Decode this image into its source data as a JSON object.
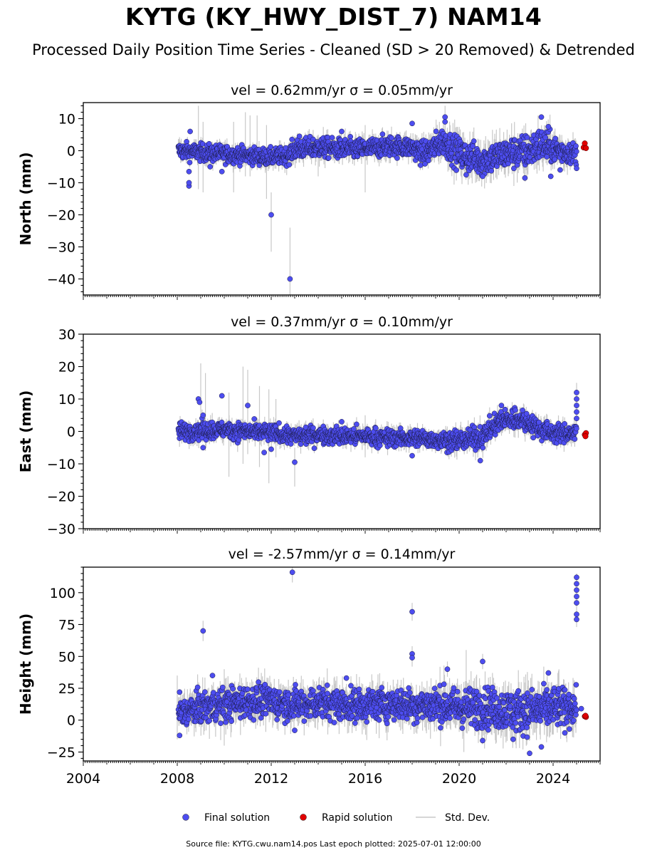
{
  "title": "KYTG (KY_HWY_DIST_7) NAM14",
  "subtitle": "Processed Daily Position Time Series - Cleaned (SD > 20 Removed) & Detrended",
  "footer": "Source file: KYTG.cwu.nam14.pos  Last epoch plotted: 2025-07-01 12:00:00",
  "colors": {
    "final": "#4d4df0",
    "rapid": "#e00000",
    "stddev": "#c8c8c8",
    "axis": "#000000"
  },
  "legend": [
    {
      "label": "Final solution",
      "type": "marker",
      "color": "#4d4df0"
    },
    {
      "label": "Rapid solution",
      "type": "marker",
      "color": "#e00000"
    },
    {
      "label": "Std. Dev.",
      "type": "line",
      "color": "#c8c8c8"
    }
  ],
  "chart_data": [
    {
      "type": "scatter",
      "component": "North",
      "title": "vel = 0.62mm/yr   σ = 0.05mm/yr",
      "ylabel": "North (mm)",
      "xlim": [
        2004.0,
        2026.0
      ],
      "ylim": [
        -45,
        15
      ],
      "yticks": [
        -40,
        -30,
        -20,
        -10,
        0,
        10
      ],
      "xticks": [
        2004,
        2008,
        2012,
        2016,
        2020,
        2024
      ],
      "data_start": 2008.05,
      "data_end": 2025.0,
      "band": [
        [
          2008.05,
          0.0,
          2.5
        ],
        [
          2009.0,
          -0.5,
          2.5
        ],
        [
          2010.0,
          -1.0,
          2.5
        ],
        [
          2011.0,
          -1.5,
          2.5
        ],
        [
          2012.0,
          -2.0,
          2.5
        ],
        [
          2012.7,
          -1.5,
          2.5
        ],
        [
          2013.0,
          0.5,
          3.0
        ],
        [
          2014.0,
          1.0,
          3.0
        ],
        [
          2015.0,
          0.5,
          3.0
        ],
        [
          2016.0,
          0.5,
          3.0
        ],
        [
          2017.0,
          1.5,
          3.0
        ],
        [
          2018.0,
          1.0,
          3.0
        ],
        [
          2018.5,
          -1.0,
          3.5
        ],
        [
          2019.3,
          3.0,
          4.0
        ],
        [
          2020.0,
          -1.0,
          4.5
        ],
        [
          2021.0,
          -3.0,
          4.5
        ],
        [
          2022.0,
          -1.0,
          4.5
        ],
        [
          2023.0,
          0.0,
          5.0
        ],
        [
          2023.5,
          2.0,
          5.0
        ],
        [
          2024.0,
          0.5,
          4.0
        ],
        [
          2025.0,
          -1.0,
          3.0
        ]
      ],
      "outliers": [
        [
          2008.5,
          -11.0
        ],
        [
          2008.5,
          -10.0
        ],
        [
          2008.5,
          -6.5
        ],
        [
          2008.55,
          6.0
        ],
        [
          2009.4,
          -5.0
        ],
        [
          2009.9,
          -6.5
        ],
        [
          2012.0,
          -20.0
        ],
        [
          2012.8,
          -40.0
        ],
        [
          2013.2,
          4.5
        ],
        [
          2015.0,
          6.0
        ],
        [
          2018.0,
          8.5
        ],
        [
          2019.4,
          10.5
        ],
        [
          2019.4,
          9.0
        ],
        [
          2021.0,
          -8.0
        ],
        [
          2022.8,
          -8.5
        ],
        [
          2023.5,
          10.5
        ],
        [
          2023.8,
          7.5
        ],
        [
          2023.9,
          -8.0
        ],
        [
          2025.0,
          -5.5
        ],
        [
          2024.3,
          -6.0
        ],
        [
          2020.3,
          -7.5
        ]
      ],
      "errorbars": [
        [
          2008.9,
          14.0,
          -12.0
        ],
        [
          2009.1,
          9.0,
          -13.0
        ],
        [
          2010.4,
          9.0,
          -13.0
        ],
        [
          2010.9,
          12.0,
          -8.0
        ],
        [
          2011.1,
          11.0,
          -8.0
        ],
        [
          2011.4,
          11.0,
          -6.0
        ],
        [
          2011.8,
          8.0,
          -15.0
        ],
        [
          2012.0,
          -13.0,
          -31.5
        ],
        [
          2012.8,
          -24.0,
          -45.0
        ],
        [
          2014.0,
          5.0,
          -8.0
        ],
        [
          2016.0,
          8.0,
          -13.0
        ],
        [
          2019.4,
          14.0,
          -3.0
        ]
      ],
      "rapid": [
        [
          2025.3,
          1.0
        ],
        [
          2025.35,
          2.3
        ],
        [
          2025.4,
          0.8
        ]
      ]
    },
    {
      "type": "scatter",
      "component": "East",
      "title": "vel = 0.37mm/yr   σ = 0.10mm/yr",
      "ylabel": "East (mm)",
      "xlim": [
        2004.0,
        2026.0
      ],
      "ylim": [
        -30,
        30
      ],
      "yticks": [
        -30,
        -20,
        -10,
        0,
        10,
        20,
        30
      ],
      "xticks": [
        2004,
        2008,
        2012,
        2016,
        2020,
        2024
      ],
      "data_start": 2008.05,
      "data_end": 2025.0,
      "band": [
        [
          2008.05,
          0.0,
          2.5
        ],
        [
          2010.0,
          0.5,
          2.5
        ],
        [
          2011.0,
          0.0,
          2.5
        ],
        [
          2012.0,
          -0.5,
          2.5
        ],
        [
          2013.0,
          -1.5,
          2.5
        ],
        [
          2014.0,
          -1.0,
          2.5
        ],
        [
          2015.0,
          -1.5,
          2.5
        ],
        [
          2016.0,
          -1.5,
          2.5
        ],
        [
          2017.0,
          -2.0,
          2.5
        ],
        [
          2018.0,
          -2.0,
          2.5
        ],
        [
          2019.0,
          -2.5,
          2.5
        ],
        [
          2020.0,
          -3.0,
          3.0
        ],
        [
          2021.0,
          -1.5,
          3.0
        ],
        [
          2021.8,
          3.5,
          3.0
        ],
        [
          2022.5,
          4.0,
          3.0
        ],
        [
          2023.0,
          2.5,
          3.0
        ],
        [
          2023.5,
          0.5,
          3.0
        ],
        [
          2024.0,
          -0.5,
          2.5
        ],
        [
          2025.0,
          -0.5,
          2.5
        ]
      ],
      "outliers": [
        [
          2008.9,
          10.0
        ],
        [
          2008.95,
          9.0
        ],
        [
          2009.1,
          5.0
        ],
        [
          2009.1,
          -5.0
        ],
        [
          2009.9,
          11.0
        ],
        [
          2011.0,
          8.0
        ],
        [
          2012.0,
          -5.5
        ],
        [
          2013.0,
          -9.5
        ],
        [
          2011.7,
          -6.5
        ],
        [
          2015.0,
          3.0
        ],
        [
          2020.9,
          -9.0
        ],
        [
          2018.0,
          -7.5
        ],
        [
          2025.0,
          12.0
        ],
        [
          2025.0,
          10.0
        ],
        [
          2025.0,
          8.0
        ],
        [
          2025.0,
          6.0
        ],
        [
          2025.0,
          4.0
        ],
        [
          2021.8,
          8.0
        ],
        [
          2022.7,
          6.5
        ]
      ],
      "errorbars": [
        [
          2009.0,
          21.0,
          -3.0
        ],
        [
          2009.2,
          18.0,
          -6.0
        ],
        [
          2010.2,
          12.0,
          -14.0
        ],
        [
          2010.8,
          20.0,
          -10.0
        ],
        [
          2011.0,
          19.0,
          -7.0
        ],
        [
          2011.5,
          14.0,
          -11.0
        ],
        [
          2011.9,
          13.0,
          -16.0
        ],
        [
          2013.0,
          -5.0,
          -17.0
        ],
        [
          2012.2,
          10.0,
          -8.0
        ],
        [
          2016.0,
          5.0,
          -8.0
        ],
        [
          2025.0,
          15.0,
          3.0
        ]
      ],
      "rapid": [
        [
          2025.35,
          -1.0
        ],
        [
          2025.4,
          -0.5
        ],
        [
          2025.38,
          -1.5
        ]
      ]
    },
    {
      "type": "scatter",
      "component": "Height",
      "title": "vel = -2.57mm/yr   σ = 0.14mm/yr",
      "ylabel": "Height (mm)",
      "xlim": [
        2004.0,
        2026.0
      ],
      "ylim": [
        -32,
        120
      ],
      "yticks": [
        -25,
        0,
        25,
        50,
        75,
        100
      ],
      "xticks": [
        2004,
        2008,
        2012,
        2016,
        2020,
        2024
      ],
      "xticklabels": [
        "2004",
        "2008",
        "2012",
        "2016",
        "2020",
        "2024"
      ],
      "data_start": 2008.05,
      "data_end": 2025.0,
      "band": [
        [
          2008.05,
          5.0,
          10.0
        ],
        [
          2009.0,
          10.0,
          12.0
        ],
        [
          2010.0,
          12.0,
          12.0
        ],
        [
          2011.0,
          15.0,
          12.0
        ],
        [
          2012.0,
          15.0,
          12.0
        ],
        [
          2013.0,
          12.0,
          12.0
        ],
        [
          2014.0,
          14.0,
          12.0
        ],
        [
          2015.0,
          12.0,
          12.0
        ],
        [
          2016.0,
          12.0,
          12.0
        ],
        [
          2017.0,
          13.0,
          12.0
        ],
        [
          2018.0,
          12.0,
          12.0
        ],
        [
          2019.0,
          12.0,
          13.0
        ],
        [
          2020.0,
          10.0,
          14.0
        ],
        [
          2021.0,
          10.0,
          15.0
        ],
        [
          2022.0,
          8.0,
          15.0
        ],
        [
          2023.0,
          7.0,
          16.0
        ],
        [
          2024.0,
          10.0,
          15.0
        ],
        [
          2025.0,
          10.0,
          12.0
        ]
      ],
      "outliers": [
        [
          2009.1,
          70.0
        ],
        [
          2009.5,
          35.0
        ],
        [
          2012.9,
          116.0
        ],
        [
          2013.0,
          -8.0
        ],
        [
          2018.0,
          85.0
        ],
        [
          2018.0,
          52.0
        ],
        [
          2018.0,
          49.0
        ],
        [
          2019.5,
          40.0
        ],
        [
          2021.0,
          46.0
        ],
        [
          2021.0,
          -16.0
        ],
        [
          2023.0,
          -26.0
        ],
        [
          2023.5,
          -21.0
        ],
        [
          2023.8,
          37.0
        ],
        [
          2025.0,
          112.0
        ],
        [
          2025.0,
          107.0
        ],
        [
          2025.0,
          102.0
        ],
        [
          2025.0,
          97.0
        ],
        [
          2025.0,
          92.0
        ],
        [
          2025.0,
          83.0
        ],
        [
          2025.0,
          79.0
        ],
        [
          2025.2,
          9.0
        ],
        [
          2008.1,
          22.0
        ],
        [
          2008.1,
          -12.0
        ],
        [
          2015.2,
          33.0
        ],
        [
          2022.3,
          -15.0
        ],
        [
          2024.5,
          -10.0
        ]
      ],
      "errorbars": [
        [
          2009.1,
          78.0,
          62.0
        ],
        [
          2012.9,
          120.0,
          108.0
        ],
        [
          2018.0,
          92.0,
          78.0
        ],
        [
          2018.0,
          58.0,
          42.0
        ],
        [
          2019.5,
          46.0,
          34.0
        ],
        [
          2020.3,
          55.0,
          -10.0
        ],
        [
          2020.2,
          30.0,
          -25.0
        ],
        [
          2021.0,
          52.0,
          40.0
        ],
        [
          2025.0,
          115.0,
          73.0
        ],
        [
          2010.0,
          40.0,
          -20.0
        ],
        [
          2008.0,
          35.0,
          -15.0
        ]
      ],
      "rapid": [
        [
          2025.35,
          3.0
        ],
        [
          2025.4,
          2.5
        ],
        [
          2025.38,
          3.5
        ]
      ]
    }
  ]
}
